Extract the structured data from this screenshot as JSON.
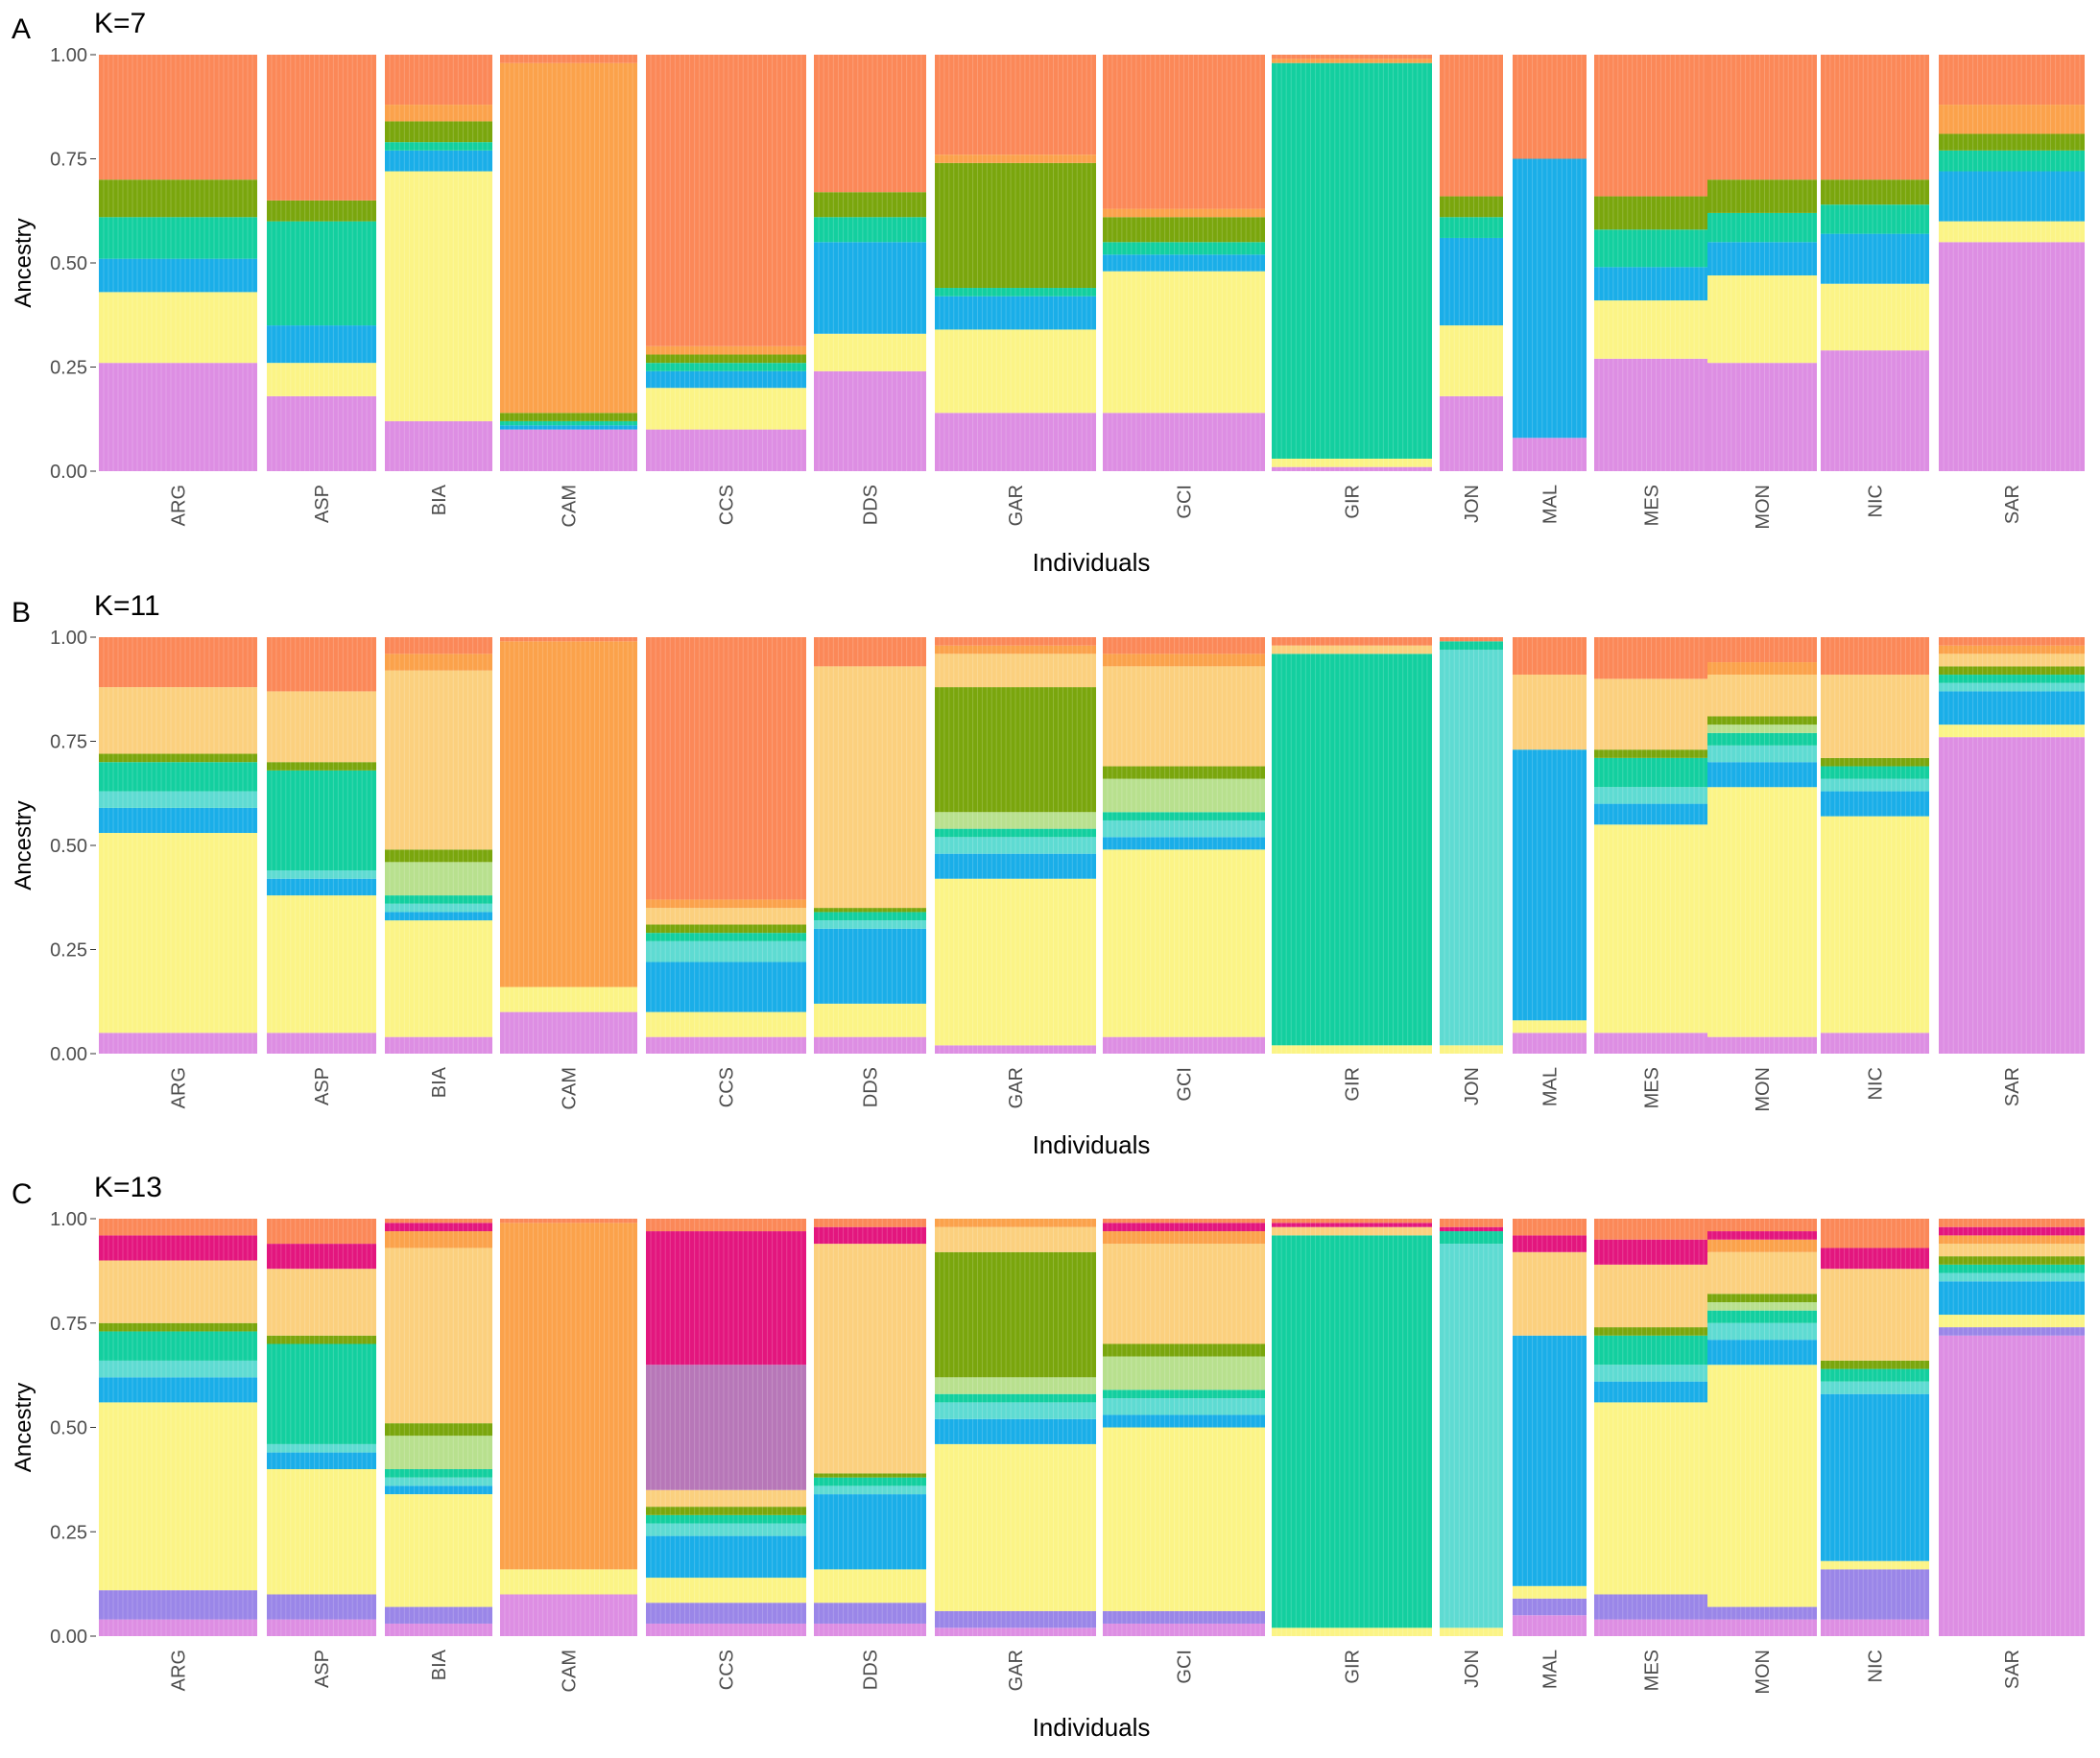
{
  "figure": {
    "populations": [
      "ARG",
      "ASP",
      "BIA",
      "CAM",
      "CCS",
      "DDS",
      "GAR",
      "GCI",
      "GIR",
      "JON",
      "MAL",
      "MES",
      "MON",
      "NIC",
      "SAR"
    ],
    "y_ticks": [
      "1.00",
      "0.75",
      "0.50",
      "0.25",
      "0.00"
    ]
  },
  "chart_data": [
    {
      "type": "bar",
      "panel_label": "A",
      "title": "K=7",
      "xlabel": "Individuals",
      "ylabel": "Ancestry",
      "ylim": [
        0,
        1
      ],
      "stacked": true,
      "categories": [
        "ARG",
        "ASP",
        "BIA",
        "CAM",
        "CCS",
        "DDS",
        "GAR",
        "GCI",
        "GIR",
        "JON",
        "MAL",
        "MES",
        "MON",
        "NIC",
        "SAR"
      ],
      "series": [
        {
          "name": "cluster-violet",
          "color": "#dd8ee3",
          "values": [
            0.26,
            0.18,
            0.12,
            0.1,
            0.1,
            0.24,
            0.14,
            0.14,
            0.01,
            0.18,
            0.08,
            0.27,
            0.26,
            0.29,
            0.55
          ]
        },
        {
          "name": "cluster-yellow",
          "color": "#fbf486",
          "values": [
            0.17,
            0.08,
            0.6,
            0.0,
            0.1,
            0.09,
            0.2,
            0.34,
            0.02,
            0.17,
            0.0,
            0.14,
            0.21,
            0.16,
            0.05
          ]
        },
        {
          "name": "cluster-blue",
          "color": "#1aaee8",
          "values": [
            0.08,
            0.09,
            0.05,
            0.01,
            0.04,
            0.22,
            0.08,
            0.04,
            0.0,
            0.21,
            0.67,
            0.08,
            0.08,
            0.12,
            0.12
          ]
        },
        {
          "name": "cluster-teal",
          "color": "#13cf9f",
          "values": [
            0.1,
            0.25,
            0.02,
            0.01,
            0.02,
            0.06,
            0.02,
            0.03,
            0.95,
            0.05,
            0.0,
            0.09,
            0.07,
            0.07,
            0.05
          ]
        },
        {
          "name": "cluster-green",
          "color": "#7aa60d",
          "values": [
            0.09,
            0.05,
            0.05,
            0.02,
            0.02,
            0.06,
            0.3,
            0.06,
            0.0,
            0.05,
            0.0,
            0.08,
            0.08,
            0.06,
            0.04
          ]
        },
        {
          "name": "cluster-orange",
          "color": "#fba24b",
          "values": [
            0.0,
            0.0,
            0.04,
            0.84,
            0.02,
            0.0,
            0.02,
            0.02,
            0.01,
            0.0,
            0.0,
            0.0,
            0.0,
            0.0,
            0.07
          ]
        },
        {
          "name": "cluster-coral",
          "color": "#fb8858",
          "values": [
            0.3,
            0.35,
            0.12,
            0.02,
            0.7,
            0.33,
            0.24,
            0.37,
            0.01,
            0.34,
            0.25,
            0.34,
            0.3,
            0.3,
            0.12
          ]
        }
      ]
    },
    {
      "type": "bar",
      "panel_label": "B",
      "title": "K=11",
      "xlabel": "Individuals",
      "ylabel": "Ancestry",
      "ylim": [
        0,
        1
      ],
      "stacked": true,
      "categories": [
        "ARG",
        "ASP",
        "BIA",
        "CAM",
        "CCS",
        "DDS",
        "GAR",
        "GCI",
        "GIR",
        "JON",
        "MAL",
        "MES",
        "MON",
        "NIC",
        "SAR"
      ],
      "series": [
        {
          "name": "cluster-violet",
          "color": "#dd8ee3",
          "values": [
            0.05,
            0.05,
            0.04,
            0.1,
            0.04,
            0.04,
            0.02,
            0.04,
            0.0,
            0.0,
            0.05,
            0.05,
            0.04,
            0.05,
            0.76
          ]
        },
        {
          "name": "cluster-yellow",
          "color": "#fbf486",
          "values": [
            0.48,
            0.33,
            0.28,
            0.06,
            0.06,
            0.08,
            0.4,
            0.45,
            0.02,
            0.02,
            0.03,
            0.5,
            0.6,
            0.52,
            0.03
          ]
        },
        {
          "name": "cluster-blue",
          "color": "#1aaee8",
          "values": [
            0.06,
            0.04,
            0.02,
            0.0,
            0.12,
            0.18,
            0.06,
            0.03,
            0.0,
            0.0,
            0.65,
            0.05,
            0.06,
            0.06,
            0.08
          ]
        },
        {
          "name": "cluster-cyan",
          "color": "#5edbd2",
          "values": [
            0.04,
            0.02,
            0.02,
            0.0,
            0.05,
            0.02,
            0.04,
            0.04,
            0.0,
            0.95,
            0.0,
            0.04,
            0.04,
            0.03,
            0.02
          ]
        },
        {
          "name": "cluster-teal",
          "color": "#13cf9f",
          "values": [
            0.07,
            0.24,
            0.02,
            0.0,
            0.02,
            0.02,
            0.02,
            0.02,
            0.94,
            0.02,
            0.0,
            0.07,
            0.03,
            0.03,
            0.02
          ]
        },
        {
          "name": "cluster-lightgreen",
          "color": "#b8e08e",
          "values": [
            0.0,
            0.0,
            0.08,
            0.0,
            0.0,
            0.0,
            0.04,
            0.08,
            0.0,
            0.0,
            0.0,
            0.0,
            0.02,
            0.0,
            0.0
          ]
        },
        {
          "name": "cluster-green",
          "color": "#7aa60d",
          "values": [
            0.02,
            0.02,
            0.03,
            0.0,
            0.02,
            0.01,
            0.3,
            0.03,
            0.0,
            0.0,
            0.0,
            0.02,
            0.02,
            0.02,
            0.02
          ]
        },
        {
          "name": "cluster-sand",
          "color": "#fbd07e",
          "values": [
            0.16,
            0.17,
            0.43,
            0.0,
            0.04,
            0.58,
            0.08,
            0.24,
            0.02,
            0.0,
            0.18,
            0.17,
            0.1,
            0.2,
            0.03
          ]
        },
        {
          "name": "cluster-orange",
          "color": "#fba24b",
          "values": [
            0.0,
            0.0,
            0.04,
            0.83,
            0.02,
            0.0,
            0.02,
            0.03,
            0.0,
            0.0,
            0.0,
            0.0,
            0.03,
            0.0,
            0.02
          ]
        },
        {
          "name": "cluster-coral",
          "color": "#fb8858",
          "values": [
            0.12,
            0.13,
            0.04,
            0.01,
            0.63,
            0.07,
            0.02,
            0.04,
            0.02,
            0.01,
            0.09,
            0.1,
            0.06,
            0.09,
            0.02
          ]
        }
      ]
    },
    {
      "type": "bar",
      "panel_label": "C",
      "title": "K=13",
      "xlabel": "Individuals",
      "ylabel": "Ancestry",
      "ylim": [
        0,
        1
      ],
      "stacked": true,
      "categories": [
        "ARG",
        "ASP",
        "BIA",
        "CAM",
        "CCS",
        "DDS",
        "GAR",
        "GCI",
        "GIR",
        "JON",
        "MAL",
        "MES",
        "MON",
        "NIC",
        "SAR"
      ],
      "series": [
        {
          "name": "cluster-violet",
          "color": "#dd8ee3",
          "values": [
            0.04,
            0.04,
            0.03,
            0.1,
            0.03,
            0.03,
            0.02,
            0.03,
            0.0,
            0.0,
            0.05,
            0.04,
            0.04,
            0.04,
            0.72
          ]
        },
        {
          "name": "cluster-periwinkle",
          "color": "#9a86e8",
          "values": [
            0.07,
            0.06,
            0.04,
            0.0,
            0.05,
            0.05,
            0.04,
            0.03,
            0.0,
            0.0,
            0.04,
            0.06,
            0.03,
            0.12,
            0.02
          ]
        },
        {
          "name": "cluster-yellow",
          "color": "#fbf486",
          "values": [
            0.45,
            0.3,
            0.27,
            0.06,
            0.06,
            0.08,
            0.4,
            0.44,
            0.02,
            0.02,
            0.03,
            0.46,
            0.58,
            0.02,
            0.03
          ]
        },
        {
          "name": "cluster-blue",
          "color": "#1aaee8",
          "values": [
            0.06,
            0.04,
            0.02,
            0.0,
            0.1,
            0.18,
            0.06,
            0.03,
            0.0,
            0.0,
            0.6,
            0.05,
            0.06,
            0.4,
            0.08
          ]
        },
        {
          "name": "cluster-cyan",
          "color": "#5edbd2",
          "values": [
            0.04,
            0.02,
            0.02,
            0.0,
            0.03,
            0.02,
            0.04,
            0.04,
            0.0,
            0.92,
            0.0,
            0.04,
            0.04,
            0.03,
            0.02
          ]
        },
        {
          "name": "cluster-teal",
          "color": "#13cf9f",
          "values": [
            0.07,
            0.24,
            0.02,
            0.0,
            0.02,
            0.02,
            0.02,
            0.02,
            0.94,
            0.03,
            0.0,
            0.07,
            0.03,
            0.03,
            0.02
          ]
        },
        {
          "name": "cluster-lightgreen",
          "color": "#b8e08e",
          "values": [
            0.0,
            0.0,
            0.08,
            0.0,
            0.0,
            0.0,
            0.04,
            0.08,
            0.0,
            0.0,
            0.0,
            0.0,
            0.02,
            0.0,
            0.0
          ]
        },
        {
          "name": "cluster-green",
          "color": "#7aa60d",
          "values": [
            0.02,
            0.02,
            0.03,
            0.0,
            0.02,
            0.01,
            0.3,
            0.03,
            0.0,
            0.0,
            0.0,
            0.02,
            0.02,
            0.02,
            0.02
          ]
        },
        {
          "name": "cluster-sand",
          "color": "#fbd07e",
          "values": [
            0.15,
            0.16,
            0.42,
            0.0,
            0.04,
            0.55,
            0.06,
            0.24,
            0.02,
            0.0,
            0.2,
            0.15,
            0.1,
            0.22,
            0.03
          ]
        },
        {
          "name": "cluster-orange",
          "color": "#fba24b",
          "values": [
            0.0,
            0.0,
            0.04,
            0.83,
            0.0,
            0.0,
            0.02,
            0.03,
            0.0,
            0.0,
            0.0,
            0.0,
            0.03,
            0.0,
            0.02
          ]
        },
        {
          "name": "cluster-mauve",
          "color": "#b777b8",
          "values": [
            0.0,
            0.0,
            0.0,
            0.0,
            0.3,
            0.0,
            0.0,
            0.0,
            0.0,
            0.0,
            0.0,
            0.0,
            0.0,
            0.0,
            0.0
          ]
        },
        {
          "name": "cluster-magenta",
          "color": "#e3167e",
          "values": [
            0.06,
            0.06,
            0.02,
            0.0,
            0.32,
            0.04,
            0.02,
            0.02,
            0.01,
            0.01,
            0.04,
            0.06,
            0.02,
            0.05,
            0.02
          ]
        },
        {
          "name": "cluster-coral",
          "color": "#fb8858",
          "values": [
            0.04,
            0.06,
            0.01,
            0.01,
            0.03,
            0.02,
            0.01,
            0.01,
            0.01,
            0.02,
            0.04,
            0.05,
            0.03,
            0.07,
            0.02
          ]
        }
      ]
    }
  ]
}
